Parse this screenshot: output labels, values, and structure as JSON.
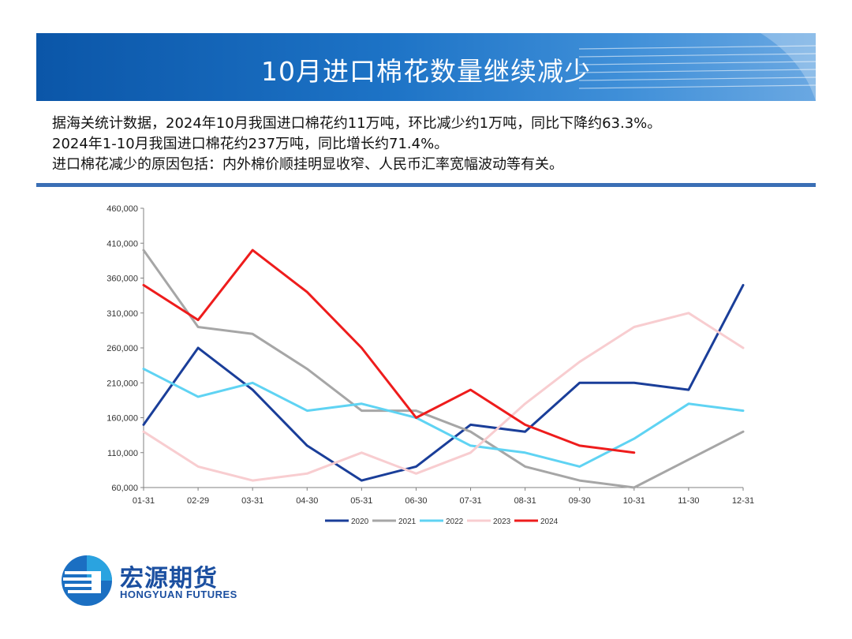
{
  "header": {
    "title": "10月进口棉花数量继续减少"
  },
  "description": {
    "lines": [
      "据海关统计数据，2024年10月我国进口棉花约11万吨，环比减少约1万吨，同比下降约63.3%。",
      "2024年1-10月我国进口棉花约237万吨，同比增长约71.4%。",
      "进口棉花减少的原因包括：内外棉价顺挂明显收窄、人民币汇率宽幅波动等有关。"
    ]
  },
  "chart_data": {
    "type": "line",
    "categories": [
      "01-31",
      "02-29",
      "03-31",
      "04-30",
      "05-31",
      "06-30",
      "07-31",
      "08-31",
      "09-30",
      "10-31",
      "11-30",
      "12-31"
    ],
    "ylim": [
      60000,
      460000
    ],
    "yticks": [
      60000,
      110000,
      160000,
      210000,
      260000,
      310000,
      360000,
      410000,
      460000
    ],
    "ytick_labels": [
      "60,000",
      "110,000",
      "160,000",
      "210,000",
      "260,000",
      "310,000",
      "360,000",
      "410,000",
      "460,000"
    ],
    "legend_position": "bottom",
    "grid": false,
    "series": [
      {
        "name": "2020",
        "color": "#1a3e99",
        "values": [
          150000,
          260000,
          200000,
          120000,
          70000,
          90000,
          150000,
          140000,
          210000,
          210000,
          200000,
          350000
        ]
      },
      {
        "name": "2021",
        "color": "#a6a6a6",
        "values": [
          400000,
          290000,
          280000,
          230000,
          170000,
          170000,
          140000,
          90000,
          70000,
          60000,
          100000,
          140000
        ]
      },
      {
        "name": "2022",
        "color": "#5fd3f3",
        "values": [
          230000,
          190000,
          210000,
          170000,
          180000,
          160000,
          120000,
          110000,
          90000,
          130000,
          180000,
          170000
        ]
      },
      {
        "name": "2023",
        "color": "#f8cdd0",
        "values": [
          140000,
          90000,
          70000,
          80000,
          110000,
          80000,
          110000,
          180000,
          240000,
          290000,
          310000,
          260000
        ]
      },
      {
        "name": "2024",
        "color": "#ee1c1c",
        "values": [
          350000,
          300000,
          400000,
          340000,
          260000,
          160000,
          200000,
          150000,
          120000,
          110000,
          null,
          null
        ]
      }
    ]
  },
  "logo": {
    "name_cn": "宏源期货",
    "name_en": "HONGYUAN FUTURES"
  }
}
